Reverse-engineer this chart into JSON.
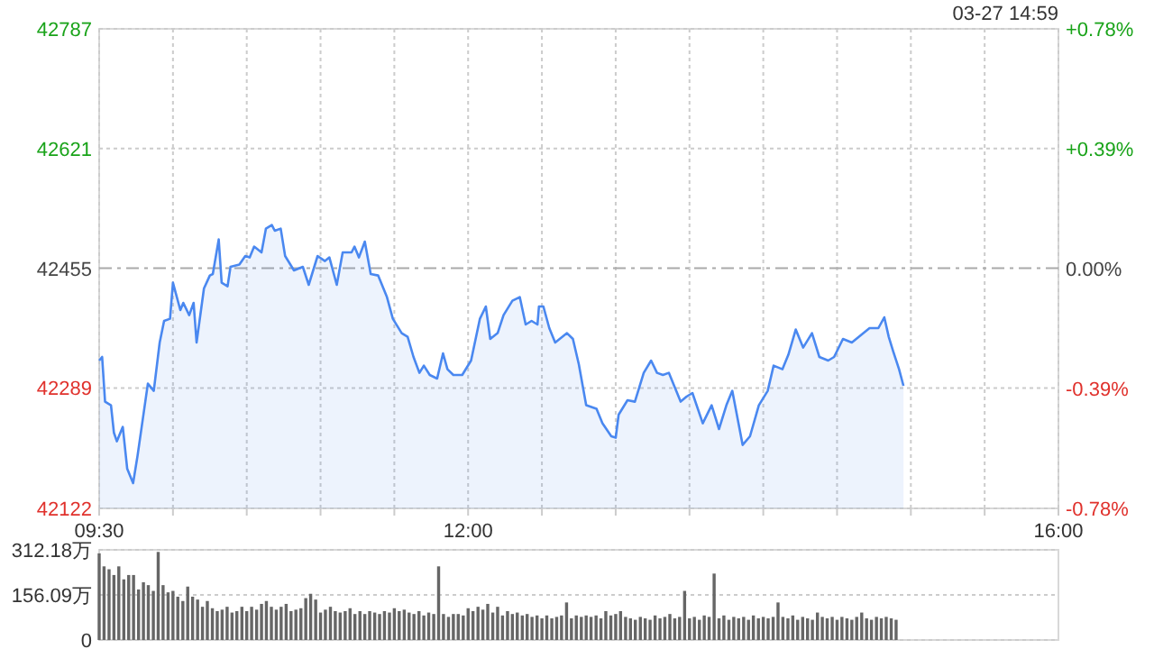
{
  "chart_data": [
    {
      "type": "area",
      "subtitle": "03-27 14:59",
      "color": "#4a88f0",
      "x": [
        9.5,
        9.52,
        9.54,
        9.58,
        9.6,
        9.62,
        9.66,
        9.69,
        9.73,
        9.76,
        9.83,
        9.87,
        9.91,
        9.94,
        9.98,
        10.0,
        10.05,
        10.07,
        10.11,
        10.14,
        10.16,
        10.21,
        10.25,
        10.27,
        10.31,
        10.33,
        10.37,
        10.39,
        10.45,
        10.49,
        10.52,
        10.55,
        10.6,
        10.63,
        10.67,
        10.69,
        10.73,
        10.76,
        10.82,
        10.88,
        10.92,
        10.98,
        11.03,
        11.06,
        11.11,
        11.15,
        11.21,
        11.23,
        11.26,
        11.3,
        11.34,
        11.39,
        11.45,
        11.49,
        11.55,
        11.59,
        11.63,
        11.67,
        11.7,
        11.74,
        11.79,
        11.83,
        11.86,
        11.9,
        11.96,
        12.02,
        12.08,
        12.12,
        12.15,
        12.2,
        12.24,
        12.3,
        12.35,
        12.39,
        12.43,
        12.47,
        12.48,
        12.51,
        12.55,
        12.59,
        12.67,
        12.71,
        12.75,
        12.8,
        12.87,
        12.91,
        12.97,
        13.0,
        13.02,
        13.08,
        13.13,
        13.16,
        13.19,
        13.24,
        13.28,
        13.32,
        13.36,
        13.4,
        13.44,
        13.48,
        13.52,
        13.59,
        13.65,
        13.7,
        13.75,
        13.79,
        13.86,
        13.91,
        13.97,
        14.03,
        14.07,
        14.13,
        14.17,
        14.22,
        14.27,
        14.33,
        14.38,
        14.44,
        14.48,
        14.54,
        14.6,
        14.66,
        14.72,
        14.78,
        14.82,
        14.85,
        14.88,
        14.92,
        14.95
      ],
      "values": [
        42327,
        42332,
        42270,
        42265,
        42227,
        42215,
        42235,
        42177,
        42157,
        42195,
        42295,
        42285,
        42352,
        42382,
        42385,
        42435,
        42397,
        42407,
        42390,
        42407,
        42352,
        42427,
        42445,
        42447,
        42495,
        42435,
        42430,
        42457,
        42460,
        42472,
        42470,
        42485,
        42477,
        42510,
        42515,
        42507,
        42510,
        42472,
        42452,
        42457,
        42432,
        42472,
        42465,
        42470,
        42432,
        42477,
        42477,
        42485,
        42470,
        42492,
        42447,
        42445,
        42415,
        42385,
        42365,
        42360,
        42332,
        42310,
        42320,
        42307,
        42302,
        42337,
        42315,
        42307,
        42307,
        42327,
        42385,
        42402,
        42357,
        42365,
        42390,
        42410,
        42415,
        42377,
        42382,
        42377,
        42402,
        42402,
        42372,
        42352,
        42365,
        42357,
        42322,
        42265,
        42260,
        42240,
        42222,
        42220,
        42252,
        42272,
        42270,
        42290,
        42310,
        42327,
        42310,
        42307,
        42310,
        42290,
        42270,
        42277,
        42282,
        42240,
        42265,
        42232,
        42265,
        42285,
        42210,
        42222,
        42265,
        42285,
        42320,
        42315,
        42335,
        42370,
        42345,
        42365,
        42332,
        42327,
        42332,
        42357,
        42352,
        42362,
        42372,
        42372,
        42387,
        42360,
        42340,
        42315,
        42292
      ],
      "xlim": [
        9.5,
        16
      ],
      "xticks": [
        {
          "value": 9.5,
          "label": "09:30"
        },
        {
          "value": 10,
          "label": null
        },
        {
          "value": 10.5,
          "label": null
        },
        {
          "value": 11,
          "label": null
        },
        {
          "value": 11.5,
          "label": null
        },
        {
          "value": 12,
          "label": "12:00"
        },
        {
          "value": 12.5,
          "label": null
        },
        {
          "value": 13,
          "label": null
        },
        {
          "value": 13.5,
          "label": null
        },
        {
          "value": 14,
          "label": null
        },
        {
          "value": 14.5,
          "label": null
        },
        {
          "value": 15,
          "label": null
        },
        {
          "value": 15.5,
          "label": null
        },
        {
          "value": 16,
          "label": "16:00"
        }
      ],
      "ylim": [
        42122,
        42787
      ],
      "yticks": [
        42122,
        42289,
        42455,
        42621,
        42787
      ],
      "y2lim": [
        -0.78,
        0.78
      ],
      "y2ticks": [
        {
          "value": -0.78,
          "label": "-0.78%"
        },
        {
          "value": -0.39,
          "label": "-0.39%"
        },
        {
          "value": 0,
          "label": "0.00%"
        },
        {
          "value": 0.39,
          "label": "+0.39%"
        },
        {
          "value": 0.78,
          "label": "+0.78%"
        }
      ],
      "grid": true,
      "ref_lines": [
        {
          "axis": "y",
          "value": 42455,
          "line_style": "dashed",
          "color": "#aaaaaa"
        }
      ]
    },
    {
      "type": "bar",
      "color": "#666666",
      "tick_labels": "y",
      "grid": "y",
      "xlim": [
        9.5,
        16
      ],
      "ylim": [
        0,
        312.18
      ],
      "yticks": [
        0,
        {
          "value": 156.09,
          "label": "156.09万"
        },
        {
          "value": 312.18,
          "label": "312.18万"
        }
      ],
      "x": [
        9.5,
        9.533,
        9.567,
        9.6,
        9.633,
        9.667,
        9.7,
        9.733,
        9.767,
        9.8,
        9.833,
        9.867,
        9.9,
        9.933,
        9.967,
        10,
        10.033,
        10.067,
        10.1,
        10.133,
        10.167,
        10.2,
        10.233,
        10.267,
        10.3,
        10.333,
        10.367,
        10.4,
        10.433,
        10.467,
        10.5,
        10.533,
        10.567,
        10.6,
        10.633,
        10.667,
        10.7,
        10.733,
        10.767,
        10.8,
        10.833,
        10.867,
        10.9,
        10.933,
        10.967,
        11,
        11.033,
        11.067,
        11.1,
        11.133,
        11.167,
        11.2,
        11.233,
        11.267,
        11.3,
        11.333,
        11.367,
        11.4,
        11.433,
        11.467,
        11.5,
        11.533,
        11.567,
        11.6,
        11.633,
        11.667,
        11.7,
        11.733,
        11.767,
        11.8,
        11.833,
        11.867,
        11.9,
        11.933,
        11.967,
        12,
        12.033,
        12.067,
        12.1,
        12.133,
        12.167,
        12.2,
        12.233,
        12.267,
        12.3,
        12.333,
        12.367,
        12.4,
        12.433,
        12.467,
        12.5,
        12.533,
        12.567,
        12.6,
        12.633,
        12.667,
        12.7,
        12.733,
        12.767,
        12.8,
        12.833,
        12.867,
        12.9,
        12.933,
        12.967,
        13,
        13.033,
        13.067,
        13.1,
        13.133,
        13.167,
        13.2,
        13.233,
        13.267,
        13.3,
        13.333,
        13.367,
        13.4,
        13.433,
        13.467,
        13.5,
        13.533,
        13.567,
        13.6,
        13.633,
        13.667,
        13.7,
        13.733,
        13.767,
        13.8,
        13.833,
        13.867,
        13.9,
        13.933,
        13.967,
        14,
        14.033,
        14.067,
        14.1,
        14.133,
        14.167,
        14.2,
        14.233,
        14.267,
        14.3,
        14.333,
        14.367,
        14.4,
        14.433,
        14.467,
        14.5,
        14.533,
        14.567,
        14.6,
        14.633,
        14.667,
        14.7,
        14.733,
        14.767,
        14.8,
        14.833,
        14.867,
        14.9
      ],
      "values": [
        300,
        255,
        245,
        225,
        255,
        210,
        225,
        225,
        175,
        200,
        190,
        170,
        305,
        190,
        165,
        170,
        150,
        135,
        185,
        150,
        140,
        115,
        135,
        110,
        100,
        105,
        115,
        95,
        100,
        115,
        100,
        115,
        105,
        125,
        135,
        115,
        105,
        115,
        125,
        100,
        105,
        110,
        145,
        160,
        140,
        95,
        105,
        115,
        100,
        95,
        100,
        110,
        90,
        100,
        90,
        100,
        95,
        90,
        100,
        95,
        110,
        100,
        105,
        95,
        90,
        100,
        85,
        95,
        90,
        255,
        90,
        80,
        90,
        90,
        85,
        110,
        100,
        115,
        105,
        125,
        95,
        115,
        85,
        100,
        90,
        95,
        85,
        90,
        80,
        85,
        75,
        85,
        75,
        80,
        85,
        130,
        75,
        85,
        80,
        85,
        80,
        85,
        75,
        100,
        85,
        90,
        100,
        80,
        75,
        70,
        80,
        75,
        70,
        85,
        75,
        80,
        90,
        75,
        80,
        170,
        75,
        80,
        70,
        85,
        80,
        230,
        75,
        85,
        70,
        80,
        75,
        80,
        70,
        85,
        75,
        80,
        75,
        80,
        130,
        80,
        75,
        85,
        70,
        80,
        75,
        70,
        95,
        80,
        75,
        80,
        70,
        80,
        75,
        70,
        80,
        95,
        75,
        70,
        80,
        75,
        80,
        75,
        70
      ]
    }
  ]
}
